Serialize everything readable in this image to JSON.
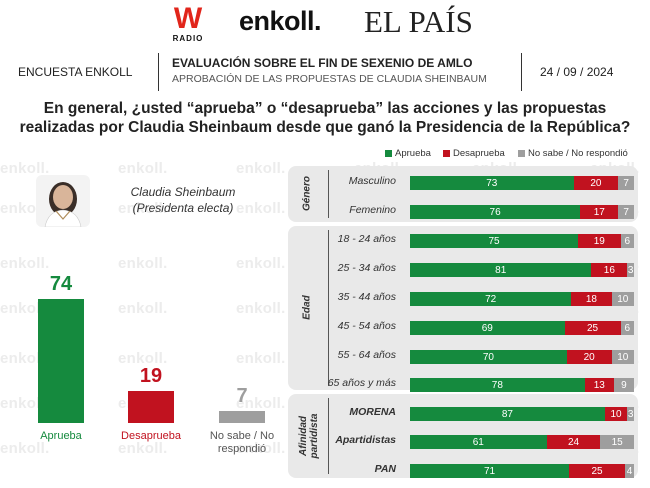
{
  "colors": {
    "approve": "#158a3e",
    "disapprove": "#c1121f",
    "unknown": "#9e9e9e",
    "approve_text": "#158a3e",
    "disapprove_text": "#c1121f"
  },
  "logos": {
    "w_letter": "W",
    "w_radio": "RADIO",
    "enkoll": "enkoll.",
    "el_pais": "EL PAÍS"
  },
  "watermark": "enkoll.",
  "header": {
    "left": "ENCUESTA ENKOLL",
    "title": "EVALUACIÓN SOBRE EL FIN DE SEXENIO DE AMLO",
    "subtitle": "APROBACIÓN DE LAS PROPUESTAS DE CLAUDIA SHEINBAUM",
    "date": "24 / 09 / 2024"
  },
  "question": {
    "line1": "En general, ¿usted “aprueba” o “desaprueba” las acciones y las propuestas",
    "line2": "realizadas por Claudia Sheinbaum desde que ganó la Presidencia de la República?"
  },
  "legend": {
    "approve": "Aprueba",
    "disapprove": "Desaprueba",
    "unknown": "No sabe / No respondió"
  },
  "candidate": {
    "name": "Claudia Sheinbaum",
    "role": "(Presidenta electa)",
    "avatar_icon": "person-photo-icon"
  },
  "chart_data": [
    {
      "type": "bar",
      "categories": [
        "Aprueba",
        "Desaprueba",
        "No sabe / No respondió"
      ],
      "values": [
        74,
        19,
        7
      ],
      "ylim": [
        0,
        100
      ]
    },
    {
      "type": "bar",
      "stacked": true,
      "orientation": "horizontal",
      "groups": [
        {
          "title": "Género",
          "rows": [
            {
              "label": "Masculino",
              "values": [
                73,
                20,
                7
              ]
            },
            {
              "label": "Femenino",
              "values": [
                76,
                17,
                7
              ]
            }
          ]
        },
        {
          "title": "Edad",
          "rows": [
            {
              "label": "18 - 24 años",
              "values": [
                75,
                19,
                6
              ]
            },
            {
              "label": "25 - 34 años",
              "values": [
                81,
                16,
                3
              ]
            },
            {
              "label": "35 - 44 años",
              "values": [
                72,
                18,
                10
              ]
            },
            {
              "label": "45 - 54 años",
              "values": [
                69,
                25,
                6
              ]
            },
            {
              "label": "55 - 64 años",
              "values": [
                70,
                20,
                10
              ]
            },
            {
              "label": "65 años y más",
              "values": [
                78,
                13,
                9
              ]
            }
          ]
        },
        {
          "title": "Afinidad partidista",
          "rows": [
            {
              "label": "MORENA",
              "values": [
                87,
                10,
                3
              ]
            },
            {
              "label": "Apartidistas",
              "values": [
                61,
                24,
                15
              ]
            },
            {
              "label": "PAN",
              "values": [
                71,
                25,
                4
              ]
            }
          ]
        }
      ],
      "series": [
        {
          "name": "Aprueba"
        },
        {
          "name": "Desaprueba"
        },
        {
          "name": "No sabe / No respondió"
        }
      ],
      "xlim": [
        0,
        100
      ],
      "legend_position": "top-right"
    }
  ]
}
